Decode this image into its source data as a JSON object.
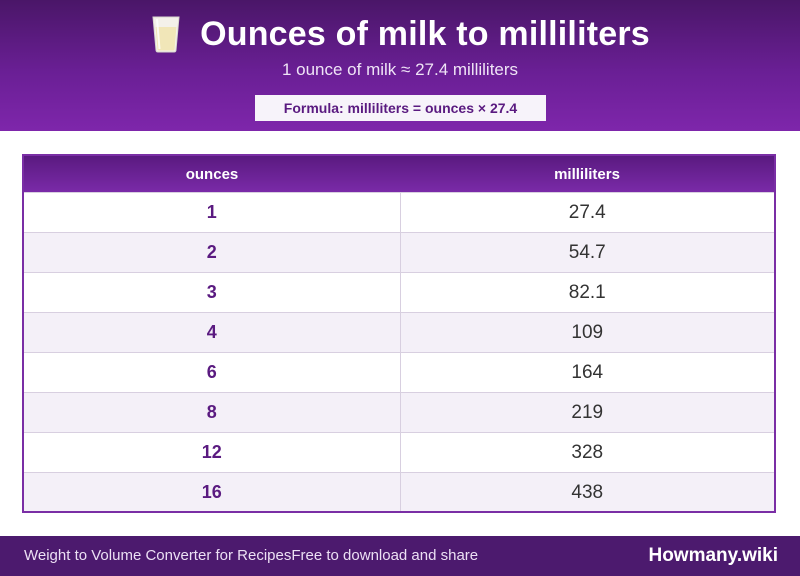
{
  "header": {
    "icon": "milk-glass-icon",
    "title": "Ounces of milk to milliliters",
    "subtitle": "1 ounce of milk ≈ 27.4 milliliters",
    "formula": "Formula: milliliters = ounces × 27.4"
  },
  "table": {
    "columns": [
      "ounces",
      "milliliters"
    ],
    "rows": [
      [
        "1",
        "27.4"
      ],
      [
        "2",
        "54.7"
      ],
      [
        "3",
        "82.1"
      ],
      [
        "4",
        "109"
      ],
      [
        "6",
        "164"
      ],
      [
        "8",
        "219"
      ],
      [
        "12",
        "328"
      ],
      [
        "16",
        "438"
      ]
    ]
  },
  "footer": {
    "left_text_1": "Weight to Volume Converter for Recipes",
    "left_text_2": "Free to download and share",
    "brand": "Howmany.wiki"
  },
  "colors": {
    "header_dark": "#4a1668",
    "header_light": "#7e26ab",
    "accent_text": "#5a1a80",
    "row_alt": "#f4f0f8",
    "footer_bg": "#4c1a6e"
  }
}
